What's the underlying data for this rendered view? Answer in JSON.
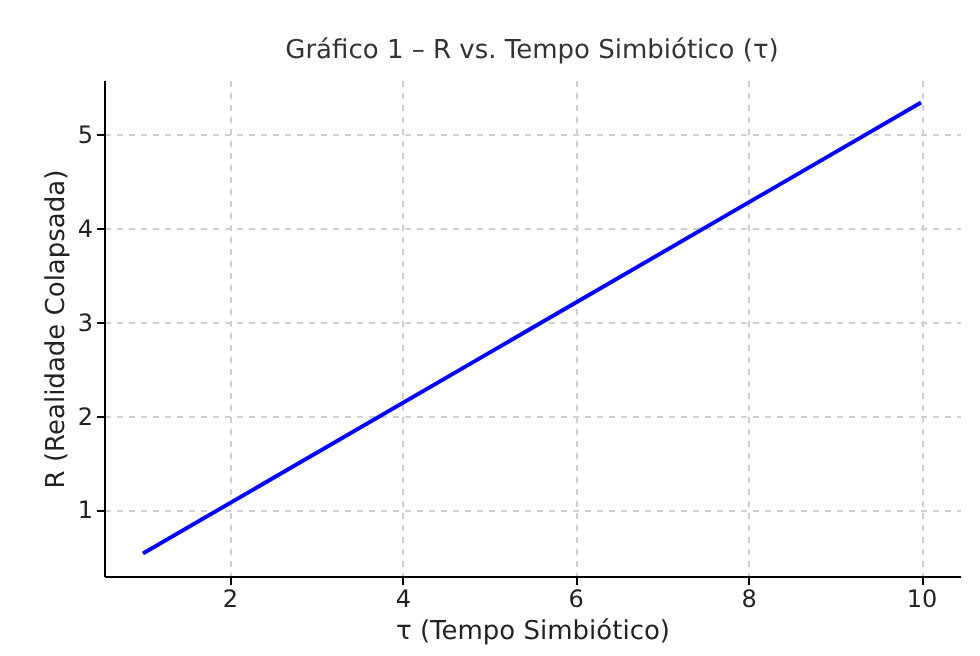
{
  "chart_data": {
    "type": "line",
    "title": "Gráfico 1 – R vs. Tempo Simbiótico (τ)",
    "xlabel": "τ (Tempo Simbiótico)",
    "ylabel": "R (Realidade Colapsada)",
    "x": [
      1,
      10
    ],
    "series": [
      {
        "color": "#0000ff",
        "values": [
          0.53,
          5.34
        ]
      }
    ],
    "xlim": [
      0.55,
      10.45
    ],
    "xticks": [
      2,
      4,
      6,
      8,
      10
    ],
    "ylim": [
      0.29,
      5.58
    ],
    "yticks": [
      1,
      2,
      3,
      4,
      5
    ],
    "grid": true,
    "marker": "none",
    "line_style": "solid"
  }
}
